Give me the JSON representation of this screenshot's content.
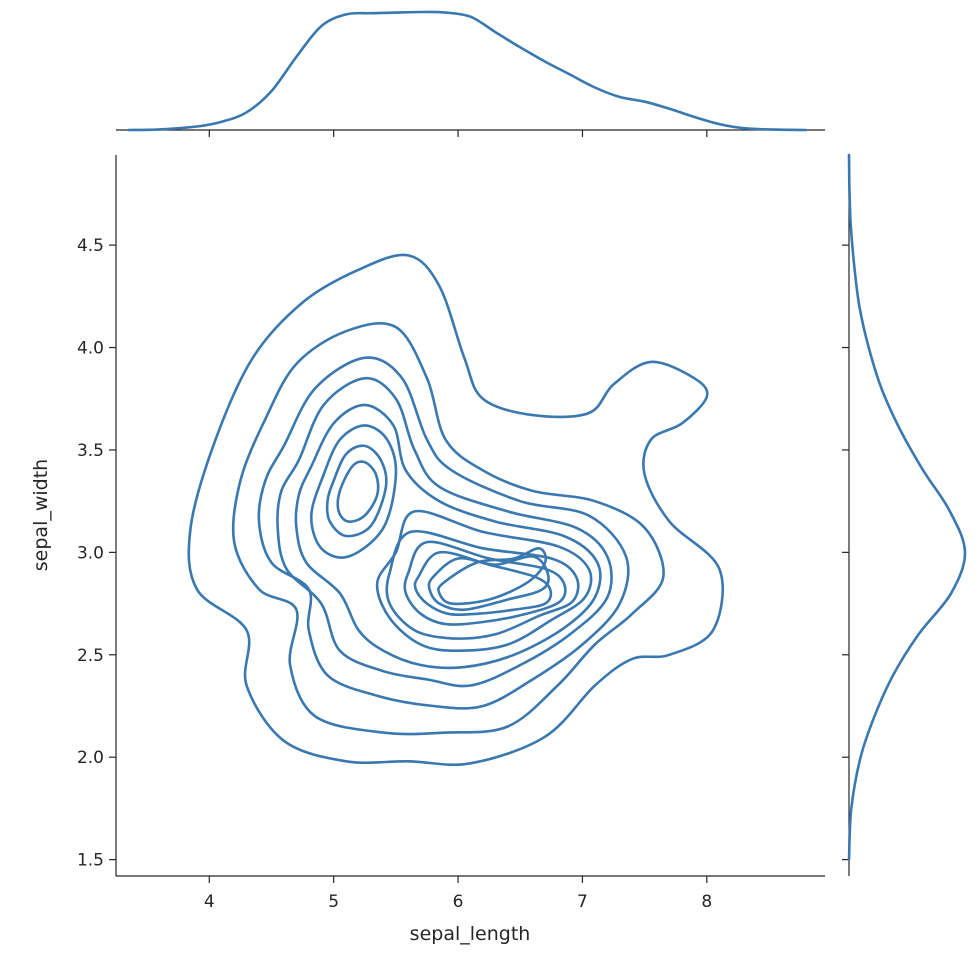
{
  "chart_data": {
    "type": "kde-jointplot",
    "xlabel": "sepal_length",
    "ylabel": "sepal_width",
    "xlim": [
      3.25,
      8.95
    ],
    "ylim": [
      1.42,
      4.94
    ],
    "xticks": [
      4,
      5,
      6,
      7,
      8
    ],
    "yticks": [
      1.5,
      2.0,
      2.5,
      3.0,
      3.5,
      4.0,
      4.5
    ],
    "ytick_labels": [
      "1.5",
      "2.0",
      "2.5",
      "3.0",
      "3.5",
      "4.0",
      "4.5"
    ],
    "color": "#3a78b0",
    "contours": [
      [
        [
          4.75,
          4.22
        ],
        [
          5.2,
          4.38
        ],
        [
          5.6,
          4.45
        ],
        [
          5.85,
          4.3
        ],
        [
          6.05,
          3.95
        ],
        [
          6.2,
          3.75
        ],
        [
          6.6,
          3.67
        ],
        [
          7.05,
          3.68
        ],
        [
          7.25,
          3.82
        ],
        [
          7.55,
          3.93
        ],
        [
          7.9,
          3.85
        ],
        [
          8.0,
          3.76
        ],
        [
          7.8,
          3.63
        ],
        [
          7.55,
          3.55
        ],
        [
          7.5,
          3.38
        ],
        [
          7.7,
          3.15
        ],
        [
          8.1,
          2.92
        ],
        [
          8.05,
          2.62
        ],
        [
          7.7,
          2.5
        ],
        [
          7.4,
          2.48
        ],
        [
          7.1,
          2.35
        ],
        [
          6.7,
          2.1
        ],
        [
          6.1,
          1.97
        ],
        [
          5.6,
          1.98
        ],
        [
          5.1,
          1.98
        ],
        [
          4.6,
          2.08
        ],
        [
          4.3,
          2.35
        ],
        [
          4.3,
          2.62
        ],
        [
          3.9,
          2.82
        ],
        [
          3.85,
          3.12
        ],
        [
          4.05,
          3.55
        ],
        [
          4.35,
          3.95
        ]
      ],
      [
        [
          4.45,
          3.65
        ],
        [
          4.7,
          3.92
        ],
        [
          5.1,
          4.08
        ],
        [
          5.5,
          4.1
        ],
        [
          5.75,
          3.85
        ],
        [
          5.9,
          3.55
        ],
        [
          6.2,
          3.4
        ],
        [
          6.6,
          3.3
        ],
        [
          7.1,
          3.25
        ],
        [
          7.5,
          3.12
        ],
        [
          7.65,
          2.88
        ],
        [
          7.4,
          2.7
        ],
        [
          7.1,
          2.55
        ],
        [
          6.8,
          2.35
        ],
        [
          6.4,
          2.15
        ],
        [
          5.9,
          2.12
        ],
        [
          5.4,
          2.12
        ],
        [
          4.85,
          2.2
        ],
        [
          4.65,
          2.45
        ],
        [
          4.7,
          2.72
        ],
        [
          4.4,
          2.82
        ],
        [
          4.2,
          3.05
        ],
        [
          4.25,
          3.35
        ]
      ],
      [
        [
          4.6,
          3.52
        ],
        [
          4.85,
          3.8
        ],
        [
          5.25,
          3.95
        ],
        [
          5.55,
          3.85
        ],
        [
          5.75,
          3.55
        ],
        [
          5.95,
          3.4
        ],
        [
          6.5,
          3.25
        ],
        [
          7.05,
          3.18
        ],
        [
          7.35,
          2.98
        ],
        [
          7.3,
          2.75
        ],
        [
          7.0,
          2.55
        ],
        [
          6.6,
          2.38
        ],
        [
          6.2,
          2.25
        ],
        [
          5.8,
          2.25
        ],
        [
          5.35,
          2.3
        ],
        [
          4.95,
          2.4
        ],
        [
          4.8,
          2.62
        ],
        [
          4.8,
          2.82
        ],
        [
          4.5,
          2.95
        ],
        [
          4.4,
          3.15
        ],
        [
          4.45,
          3.35
        ]
      ],
      [
        [
          4.72,
          3.45
        ],
        [
          4.92,
          3.72
        ],
        [
          5.25,
          3.85
        ],
        [
          5.5,
          3.75
        ],
        [
          5.65,
          3.5
        ],
        [
          5.85,
          3.32
        ],
        [
          6.4,
          3.2
        ],
        [
          6.95,
          3.12
        ],
        [
          7.2,
          2.98
        ],
        [
          7.2,
          2.78
        ],
        [
          6.9,
          2.6
        ],
        [
          6.5,
          2.45
        ],
        [
          6.1,
          2.35
        ],
        [
          5.75,
          2.38
        ],
        [
          5.4,
          2.42
        ],
        [
          5.05,
          2.52
        ],
        [
          4.9,
          2.75
        ],
        [
          4.62,
          2.92
        ],
        [
          4.55,
          3.12
        ],
        [
          4.58,
          3.3
        ]
      ],
      [
        [
          4.82,
          3.42
        ],
        [
          5.0,
          3.63
        ],
        [
          5.25,
          3.72
        ],
        [
          5.48,
          3.62
        ],
        [
          5.58,
          3.4
        ],
        [
          5.85,
          3.25
        ],
        [
          6.3,
          3.15
        ],
        [
          6.85,
          3.08
        ],
        [
          7.12,
          2.95
        ],
        [
          7.1,
          2.78
        ],
        [
          6.85,
          2.63
        ],
        [
          6.45,
          2.5
        ],
        [
          6.05,
          2.44
        ],
        [
          5.7,
          2.45
        ],
        [
          5.4,
          2.52
        ],
        [
          5.2,
          2.62
        ],
        [
          5.05,
          2.8
        ],
        [
          4.78,
          2.95
        ],
        [
          4.7,
          3.12
        ],
        [
          4.72,
          3.28
        ]
      ],
      [
        [
          4.92,
          3.38
        ],
        [
          5.05,
          3.55
        ],
        [
          5.25,
          3.62
        ],
        [
          5.43,
          3.55
        ],
        [
          5.5,
          3.38
        ],
        [
          5.4,
          3.12
        ],
        [
          5.12,
          2.98
        ],
        [
          4.9,
          3.02
        ],
        [
          4.82,
          3.18
        ]
      ],
      [
        [
          5.5,
          3.0
        ],
        [
          5.65,
          3.2
        ],
        [
          6.2,
          3.1
        ],
        [
          6.8,
          3.03
        ],
        [
          7.05,
          2.92
        ],
        [
          7.02,
          2.78
        ],
        [
          6.75,
          2.67
        ],
        [
          6.4,
          2.55
        ],
        [
          6.0,
          2.52
        ],
        [
          5.7,
          2.55
        ],
        [
          5.45,
          2.68
        ],
        [
          5.35,
          2.85
        ]
      ],
      [
        [
          5.0,
          3.35
        ],
        [
          5.1,
          3.48
        ],
        [
          5.25,
          3.52
        ],
        [
          5.38,
          3.45
        ],
        [
          5.42,
          3.32
        ],
        [
          5.3,
          3.13
        ],
        [
          5.1,
          3.08
        ],
        [
          4.97,
          3.15
        ],
        [
          4.95,
          3.25
        ]
      ],
      [
        [
          5.45,
          2.9
        ],
        [
          5.62,
          3.1
        ],
        [
          6.2,
          3.02
        ],
        [
          6.75,
          2.97
        ],
        [
          6.95,
          2.88
        ],
        [
          6.92,
          2.76
        ],
        [
          6.65,
          2.69
        ],
        [
          6.3,
          2.6
        ],
        [
          5.95,
          2.58
        ],
        [
          5.65,
          2.62
        ],
        [
          5.45,
          2.75
        ]
      ],
      [
        [
          5.05,
          3.3
        ],
        [
          5.15,
          3.42
        ],
        [
          5.25,
          3.44
        ],
        [
          5.34,
          3.38
        ],
        [
          5.35,
          3.28
        ],
        [
          5.25,
          3.18
        ],
        [
          5.12,
          3.15
        ],
        [
          5.04,
          3.2
        ]
      ],
      [
        [
          5.6,
          2.9
        ],
        [
          5.75,
          3.05
        ],
        [
          6.25,
          2.97
        ],
        [
          6.7,
          2.92
        ],
        [
          6.85,
          2.85
        ],
        [
          6.82,
          2.76
        ],
        [
          6.55,
          2.7
        ],
        [
          6.2,
          2.66
        ],
        [
          5.9,
          2.65
        ],
        [
          5.7,
          2.7
        ],
        [
          5.58,
          2.8
        ]
      ],
      [
        [
          5.68,
          2.88
        ],
        [
          5.85,
          3.0
        ],
        [
          6.25,
          2.94
        ],
        [
          6.62,
          2.88
        ],
        [
          6.74,
          2.82
        ],
        [
          6.7,
          2.75
        ],
        [
          6.45,
          2.72
        ],
        [
          6.15,
          2.7
        ],
        [
          5.92,
          2.7
        ],
        [
          5.75,
          2.75
        ],
        [
          5.66,
          2.82
        ]
      ],
      [
        [
          5.8,
          2.88
        ],
        [
          6.0,
          2.97
        ],
        [
          6.3,
          2.94
        ],
        [
          6.6,
          2.98
        ],
        [
          6.72,
          2.9
        ],
        [
          6.68,
          2.82
        ],
        [
          6.4,
          2.77
        ],
        [
          6.05,
          2.72
        ],
        [
          5.85,
          2.75
        ],
        [
          5.77,
          2.82
        ]
      ],
      [
        [
          5.88,
          2.85
        ],
        [
          6.15,
          2.95
        ],
        [
          6.45,
          2.97
        ],
        [
          6.65,
          3.02
        ],
        [
          6.7,
          2.95
        ],
        [
          6.55,
          2.85
        ],
        [
          6.25,
          2.77
        ],
        [
          5.95,
          2.75
        ],
        [
          5.85,
          2.8
        ]
      ]
    ],
    "marginal_x": {
      "x": [
        3.35,
        3.6,
        3.9,
        4.1,
        4.3,
        4.5,
        4.7,
        4.9,
        5.1,
        5.3,
        5.5,
        5.7,
        5.9,
        6.1,
        6.3,
        6.5,
        6.7,
        6.9,
        7.1,
        7.3,
        7.5,
        7.7,
        7.9,
        8.1,
        8.3,
        8.55,
        8.8
      ],
      "density": [
        0.0,
        0.005,
        0.03,
        0.07,
        0.15,
        0.33,
        0.62,
        0.88,
        0.98,
        0.99,
        0.995,
        1.0,
        0.995,
        0.96,
        0.83,
        0.7,
        0.58,
        0.47,
        0.36,
        0.28,
        0.24,
        0.18,
        0.11,
        0.05,
        0.015,
        0.003,
        0.0
      ]
    },
    "marginal_y": {
      "y": [
        1.5,
        1.75,
        2.0,
        2.2,
        2.4,
        2.6,
        2.8,
        3.0,
        3.2,
        3.4,
        3.6,
        3.8,
        4.0,
        4.2,
        4.4,
        4.6,
        4.8,
        4.94
      ],
      "density": [
        0.0,
        0.02,
        0.1,
        0.22,
        0.38,
        0.6,
        0.88,
        1.0,
        0.87,
        0.64,
        0.44,
        0.28,
        0.17,
        0.09,
        0.045,
        0.015,
        0.003,
        0.0
      ]
    }
  }
}
